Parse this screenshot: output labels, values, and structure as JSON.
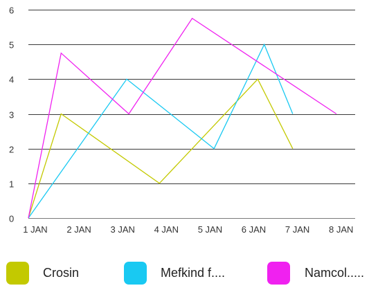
{
  "chart_data": {
    "type": "line",
    "title": "",
    "xlabel": "",
    "ylabel": "",
    "x_labels": [
      "1 JAN",
      "2 JAN",
      "3 JAN",
      "4 JAN",
      "5 JAN",
      "6 JAN",
      "7 JAN",
      "8 JAN"
    ],
    "xlim": [
      1,
      8
    ],
    "ylim": [
      0,
      6
    ],
    "y_ticks": [
      0,
      1,
      2,
      3,
      4,
      5,
      6
    ],
    "grid": "horizontal",
    "legend_position": "bottom",
    "series": [
      {
        "name": "Crosin",
        "color": "#c3c900",
        "points": [
          [
            1,
            0
          ],
          [
            1.75,
            3
          ],
          [
            4,
            1
          ],
          [
            6.25,
            4
          ],
          [
            7.05,
            2
          ]
        ]
      },
      {
        "name": "Mefkind f....",
        "color": "#19c9f2",
        "points": [
          [
            1,
            0
          ],
          [
            3.25,
            4
          ],
          [
            5.25,
            2
          ],
          [
            6.4,
            5
          ],
          [
            7.05,
            3
          ]
        ]
      },
      {
        "name": "Namcol.....",
        "color": "#f021f0",
        "points": [
          [
            1,
            0
          ],
          [
            1.75,
            4.75
          ],
          [
            3.3,
            3
          ],
          [
            4.75,
            5.75
          ],
          [
            8.05,
            3
          ]
        ]
      }
    ]
  }
}
